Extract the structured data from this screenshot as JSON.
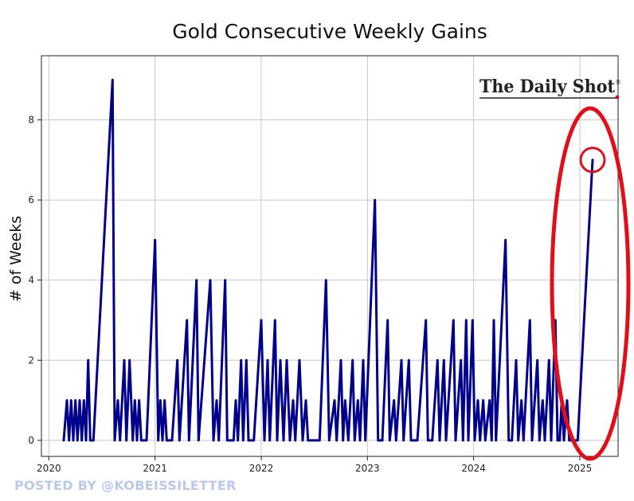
{
  "chart_data": {
    "type": "line",
    "title": "Gold Consecutive Weekly Gains",
    "xlabel": "",
    "ylabel": "# of Weeks",
    "xlim": [
      2019.93,
      2025.36
    ],
    "ylim": [
      -0.4,
      9.6
    ],
    "x_ticks": [
      {
        "value": 2020,
        "label": "2020"
      },
      {
        "value": 2021,
        "label": "2021"
      },
      {
        "value": 2022,
        "label": "2022"
      },
      {
        "value": 2023,
        "label": "2023"
      },
      {
        "value": 2024,
        "label": "2024"
      },
      {
        "value": 2025,
        "label": "2025"
      }
    ],
    "y_ticks": [
      {
        "value": 0,
        "label": "0"
      },
      {
        "value": 2,
        "label": "2"
      },
      {
        "value": 4,
        "label": "4"
      },
      {
        "value": 6,
        "label": "6"
      },
      {
        "value": 8,
        "label": "8"
      }
    ],
    "grid": true,
    "line_color": "#00008b",
    "highlight_color": "#e0101a",
    "highlight_point": {
      "x": 2025.12,
      "y": 7
    },
    "series": [
      {
        "points": [
          [
            2020.14,
            0
          ],
          [
            2020.17,
            1
          ],
          [
            2020.19,
            0
          ],
          [
            2020.21,
            1
          ],
          [
            2020.23,
            0
          ],
          [
            2020.25,
            1
          ],
          [
            2020.27,
            0
          ],
          [
            2020.29,
            1
          ],
          [
            2020.31,
            0
          ],
          [
            2020.33,
            1
          ],
          [
            2020.35,
            0
          ],
          [
            2020.37,
            2
          ],
          [
            2020.39,
            0
          ],
          [
            2020.42,
            0
          ],
          [
            2020.6,
            9
          ],
          [
            2020.62,
            0
          ],
          [
            2020.65,
            1
          ],
          [
            2020.67,
            0
          ],
          [
            2020.71,
            2
          ],
          [
            2020.73,
            0
          ],
          [
            2020.76,
            2
          ],
          [
            2020.79,
            0
          ],
          [
            2020.81,
            1
          ],
          [
            2020.83,
            0
          ],
          [
            2020.85,
            1
          ],
          [
            2020.87,
            0
          ],
          [
            2020.92,
            0
          ],
          [
            2021.0,
            5
          ],
          [
            2021.03,
            0
          ],
          [
            2021.05,
            1
          ],
          [
            2021.07,
            0
          ],
          [
            2021.09,
            1
          ],
          [
            2021.11,
            0
          ],
          [
            2021.16,
            0
          ],
          [
            2021.21,
            2
          ],
          [
            2021.23,
            0
          ],
          [
            2021.3,
            3
          ],
          [
            2021.32,
            0
          ],
          [
            2021.39,
            4
          ],
          [
            2021.41,
            0
          ],
          [
            2021.52,
            4
          ],
          [
            2021.55,
            0
          ],
          [
            2021.58,
            1
          ],
          [
            2021.6,
            0
          ],
          [
            2021.66,
            4
          ],
          [
            2021.68,
            0
          ],
          [
            2021.74,
            0
          ],
          [
            2021.76,
            1
          ],
          [
            2021.78,
            0
          ],
          [
            2021.81,
            2
          ],
          [
            2021.83,
            0
          ],
          [
            2021.86,
            2
          ],
          [
            2021.88,
            0
          ],
          [
            2021.93,
            0
          ],
          [
            2022.0,
            3
          ],
          [
            2022.03,
            0
          ],
          [
            2022.06,
            2
          ],
          [
            2022.08,
            0
          ],
          [
            2022.13,
            3
          ],
          [
            2022.15,
            0
          ],
          [
            2022.18,
            2
          ],
          [
            2022.21,
            0
          ],
          [
            2022.24,
            2
          ],
          [
            2022.27,
            0
          ],
          [
            2022.3,
            1
          ],
          [
            2022.32,
            0
          ],
          [
            2022.36,
            2
          ],
          [
            2022.39,
            0
          ],
          [
            2022.42,
            1
          ],
          [
            2022.44,
            0
          ],
          [
            2022.55,
            0
          ],
          [
            2022.61,
            4
          ],
          [
            2022.64,
            0
          ],
          [
            2022.69,
            1
          ],
          [
            2022.71,
            0
          ],
          [
            2022.75,
            2
          ],
          [
            2022.77,
            0
          ],
          [
            2022.79,
            1
          ],
          [
            2022.82,
            0
          ],
          [
            2022.86,
            2
          ],
          [
            2022.88,
            0
          ],
          [
            2022.91,
            1
          ],
          [
            2022.93,
            0
          ],
          [
            2022.96,
            2
          ],
          [
            2022.98,
            0
          ],
          [
            2023.07,
            6
          ],
          [
            2023.1,
            0
          ],
          [
            2023.14,
            0
          ],
          [
            2023.19,
            3
          ],
          [
            2023.21,
            0
          ],
          [
            2023.25,
            1
          ],
          [
            2023.27,
            0
          ],
          [
            2023.32,
            2
          ],
          [
            2023.34,
            0
          ],
          [
            2023.39,
            2
          ],
          [
            2023.41,
            0
          ],
          [
            2023.47,
            0
          ],
          [
            2023.55,
            3
          ],
          [
            2023.57,
            0
          ],
          [
            2023.61,
            0
          ],
          [
            2023.66,
            2
          ],
          [
            2023.68,
            0
          ],
          [
            2023.72,
            2
          ],
          [
            2023.74,
            0
          ],
          [
            2023.81,
            3
          ],
          [
            2023.83,
            0
          ],
          [
            2023.88,
            2
          ],
          [
            2023.9,
            0
          ],
          [
            2023.93,
            3
          ],
          [
            2023.95,
            0
          ],
          [
            2023.99,
            3
          ],
          [
            2024.01,
            0
          ],
          [
            2024.04,
            1
          ],
          [
            2024.06,
            0
          ],
          [
            2024.09,
            1
          ],
          [
            2024.11,
            0
          ],
          [
            2024.15,
            1
          ],
          [
            2024.17,
            0
          ],
          [
            2024.19,
            3
          ],
          [
            2024.21,
            0
          ],
          [
            2024.3,
            5
          ],
          [
            2024.33,
            0
          ],
          [
            2024.36,
            0
          ],
          [
            2024.4,
            2
          ],
          [
            2024.42,
            0
          ],
          [
            2024.45,
            1
          ],
          [
            2024.47,
            0
          ],
          [
            2024.53,
            3
          ],
          [
            2024.55,
            0
          ],
          [
            2024.6,
            2
          ],
          [
            2024.62,
            0
          ],
          [
            2024.65,
            1
          ],
          [
            2024.67,
            0
          ],
          [
            2024.71,
            2
          ],
          [
            2024.73,
            0
          ],
          [
            2024.77,
            3
          ],
          [
            2024.79,
            0
          ],
          [
            2024.81,
            0
          ],
          [
            2024.83,
            1
          ],
          [
            2024.85,
            0
          ],
          [
            2024.88,
            1
          ],
          [
            2024.9,
            0
          ],
          [
            2024.98,
            0
          ],
          [
            2025.12,
            7
          ]
        ]
      }
    ]
  },
  "brand": {
    "name": "The Daily Shot",
    "mark": "®"
  },
  "credit": "POSTED BY @KOBEISSILETTER"
}
